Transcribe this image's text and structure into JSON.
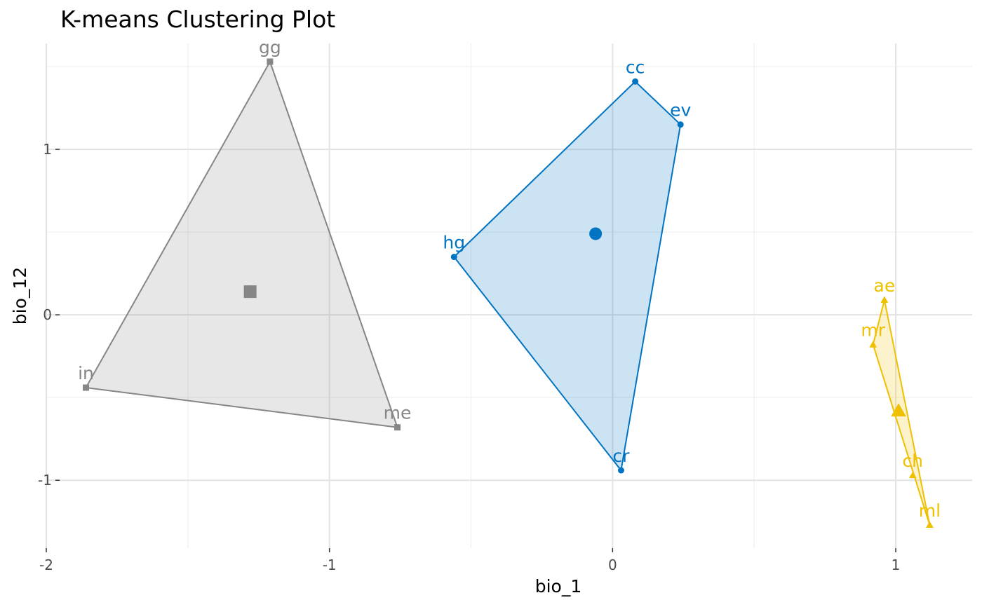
{
  "chart_data": {
    "type": "scatter",
    "title": "K-means Clustering Plot",
    "xlabel": "bio_1",
    "ylabel": "bio_12",
    "xlim": [
      -2.0,
      1.27
    ],
    "ylim": [
      -1.41,
      1.64
    ],
    "x_ticks": [
      -2,
      -1,
      0,
      1
    ],
    "x_tick_labels": [
      "-2",
      "-1",
      "0",
      "1"
    ],
    "y_ticks": [
      -1,
      0,
      1
    ],
    "y_tick_labels": [
      "-1",
      "0",
      "1"
    ],
    "grid": true,
    "legend": "none",
    "clusters": [
      {
        "id": 1,
        "color": "#868686",
        "shape": "square",
        "hull_order": [
          "gg",
          "me",
          "in"
        ],
        "centroid": {
          "x": -1.28,
          "y": 0.14
        },
        "points": [
          {
            "label": "gg",
            "x": -1.21,
            "y": 1.53
          },
          {
            "label": "in",
            "x": -1.86,
            "y": -0.44
          },
          {
            "label": "me",
            "x": -0.76,
            "y": -0.68
          }
        ]
      },
      {
        "id": 2,
        "color": "#0073C2",
        "shape": "circle",
        "hull_order": [
          "hg",
          "cc",
          "ev",
          "cr"
        ],
        "centroid": {
          "x": -0.06,
          "y": 0.49
        },
        "points": [
          {
            "label": "cc",
            "x": 0.08,
            "y": 1.41
          },
          {
            "label": "ev",
            "x": 0.24,
            "y": 1.15
          },
          {
            "label": "hg",
            "x": -0.56,
            "y": 0.35
          },
          {
            "label": "cr",
            "x": 0.03,
            "y": -0.94
          }
        ]
      },
      {
        "id": 3,
        "color": "#EFC000",
        "shape": "triangle",
        "hull_order": [
          "ae",
          "ml",
          "mr"
        ],
        "centroid": {
          "x": 1.01,
          "y": -0.58
        },
        "points": [
          {
            "label": "ae",
            "x": 0.96,
            "y": 0.09
          },
          {
            "label": "mr",
            "x": 0.92,
            "y": -0.18
          },
          {
            "label": "ch",
            "x": 1.06,
            "y": -0.97
          },
          {
            "label": "ml",
            "x": 1.12,
            "y": -1.27
          }
        ]
      }
    ]
  }
}
